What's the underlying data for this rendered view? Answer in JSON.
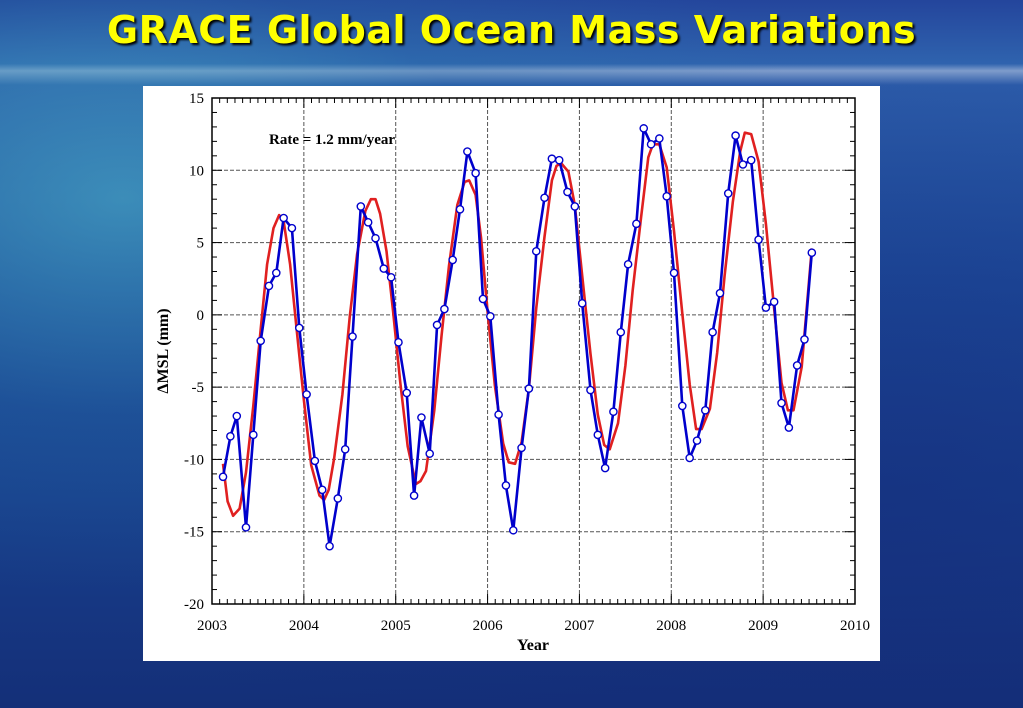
{
  "title": "GRACE Global Ocean Mass Variations",
  "chart_data": {
    "type": "line",
    "annotation": "Rate = 1.2 mm/year",
    "xlabel": "Year",
    "ylabel": "ΔMSL (mm)",
    "xlim": [
      2003,
      2010
    ],
    "ylim": [
      -20,
      15
    ],
    "x_ticks": [
      2003,
      2004,
      2005,
      2006,
      2007,
      2008,
      2009,
      2010
    ],
    "y_ticks": [
      15,
      10,
      5,
      0,
      -5,
      -10,
      -15,
      -20
    ],
    "grid": true,
    "colors": {
      "observed": "#0000cc",
      "fit": "#e02020",
      "marker_fill": "#ffffff"
    },
    "series": [
      {
        "markers": true,
        "x": [
          2003.12,
          2003.2,
          2003.27,
          2003.37,
          2003.45,
          2003.53,
          2003.62,
          2003.7,
          2003.78,
          2003.87,
          2003.95,
          2004.03,
          2004.12,
          2004.2,
          2004.28,
          2004.37,
          2004.45,
          2004.53,
          2004.62,
          2004.7,
          2004.78,
          2004.87,
          2004.95,
          2005.03,
          2005.12,
          2005.2,
          2005.28,
          2005.37,
          2005.45,
          2005.53,
          2005.62,
          2005.7,
          2005.78,
          2005.87,
          2005.95,
          2006.03,
          2006.12,
          2006.2,
          2006.28,
          2006.37,
          2006.45,
          2006.53,
          2006.62,
          2006.7,
          2006.78,
          2006.87,
          2006.95,
          2007.03,
          2007.12,
          2007.2,
          2007.28,
          2007.37,
          2007.45,
          2007.53,
          2007.62,
          2007.7,
          2007.78,
          2007.87,
          2007.95,
          2008.03,
          2008.12,
          2008.2,
          2008.28,
          2008.37,
          2008.45,
          2008.53,
          2008.62,
          2008.7,
          2008.78,
          2008.87,
          2008.95,
          2009.03,
          2009.12,
          2009.2,
          2009.28,
          2009.37,
          2009.45,
          2009.53
        ],
        "values": [
          -11.2,
          -8.4,
          -7.0,
          -14.7,
          -8.3,
          -1.8,
          2.0,
          2.9,
          6.7,
          6.0,
          -0.9,
          -5.5,
          -10.1,
          -12.1,
          -16.0,
          -12.7,
          -9.3,
          -1.5,
          7.5,
          6.4,
          5.3,
          3.2,
          2.6,
          -1.9,
          -5.4,
          -12.5,
          -7.1,
          -9.6,
          -0.7,
          0.4,
          3.8,
          7.3,
          11.3,
          9.8,
          1.1,
          -0.1,
          -6.9,
          -11.8,
          -14.9,
          -9.2,
          -5.1,
          4.4,
          8.1,
          10.8,
          10.7,
          8.5,
          7.5,
          0.8,
          -5.2,
          -8.3,
          -10.6,
          -6.7,
          -1.2,
          3.5,
          6.3,
          12.9,
          11.8,
          12.2,
          8.2,
          2.9,
          -6.3,
          -9.9,
          -8.7,
          -6.6,
          -1.2,
          1.5,
          8.4,
          12.4,
          10.4,
          10.7,
          5.2,
          0.5,
          0.9,
          -6.1,
          -7.8,
          -3.5,
          -1.7,
          4.3
        ]
      },
      {
        "markers": false,
        "x": [
          2003.12,
          2003.17,
          2003.23,
          2003.3,
          2003.37,
          2003.45,
          2003.53,
          2003.6,
          2003.67,
          2003.73,
          2003.78,
          2003.85,
          2003.92,
          2004.0,
          2004.08,
          2004.17,
          2004.22,
          2004.27,
          2004.33,
          2004.42,
          2004.5,
          2004.58,
          2004.67,
          2004.73,
          2004.78,
          2004.83,
          2004.9,
          2004.97,
          2005.05,
          2005.13,
          2005.22,
          2005.27,
          2005.33,
          2005.42,
          2005.5,
          2005.58,
          2005.67,
          2005.75,
          2005.8,
          2005.87,
          2005.93,
          2006.0,
          2006.08,
          2006.17,
          2006.23,
          2006.3,
          2006.37,
          2006.45,
          2006.53,
          2006.62,
          2006.7,
          2006.75,
          2006.8,
          2006.88,
          2006.95,
          2007.03,
          2007.12,
          2007.2,
          2007.27,
          2007.33,
          2007.42,
          2007.5,
          2007.58,
          2007.67,
          2007.75,
          2007.8,
          2007.87,
          2007.95,
          2008.03,
          2008.12,
          2008.2,
          2008.27,
          2008.33,
          2008.42,
          2008.5,
          2008.58,
          2008.67,
          2008.75,
          2008.8,
          2008.87,
          2008.95,
          2009.03,
          2009.12,
          2009.2,
          2009.27,
          2009.33,
          2009.42,
          2009.53
        ],
        "values": [
          -10.3,
          -12.9,
          -13.9,
          -13.4,
          -10.9,
          -6.3,
          -1.0,
          3.5,
          6.0,
          6.9,
          6.5,
          3.5,
          -0.9,
          -5.9,
          -10.4,
          -12.5,
          -12.8,
          -12.1,
          -9.9,
          -5.5,
          -0.1,
          4.2,
          7.2,
          8.0,
          8.0,
          7.0,
          4.4,
          0.3,
          -4.7,
          -9.1,
          -11.7,
          -11.5,
          -10.8,
          -6.6,
          -1.4,
          3.4,
          7.6,
          9.2,
          9.3,
          8.3,
          5.3,
          0.2,
          -4.9,
          -8.9,
          -10.2,
          -10.3,
          -8.8,
          -5.1,
          0.5,
          5.4,
          9.3,
          10.3,
          10.5,
          9.9,
          7.6,
          2.7,
          -2.7,
          -6.9,
          -9.0,
          -9.3,
          -7.5,
          -3.5,
          1.7,
          6.7,
          10.9,
          11.8,
          11.8,
          10.2,
          5.8,
          0.1,
          -4.8,
          -7.9,
          -7.9,
          -6.5,
          -2.6,
          2.7,
          7.8,
          11.3,
          12.6,
          12.5,
          10.6,
          6.3,
          0.4,
          -4.7,
          -6.6,
          -6.6,
          -3.6,
          4.6
        ]
      }
    ]
  }
}
